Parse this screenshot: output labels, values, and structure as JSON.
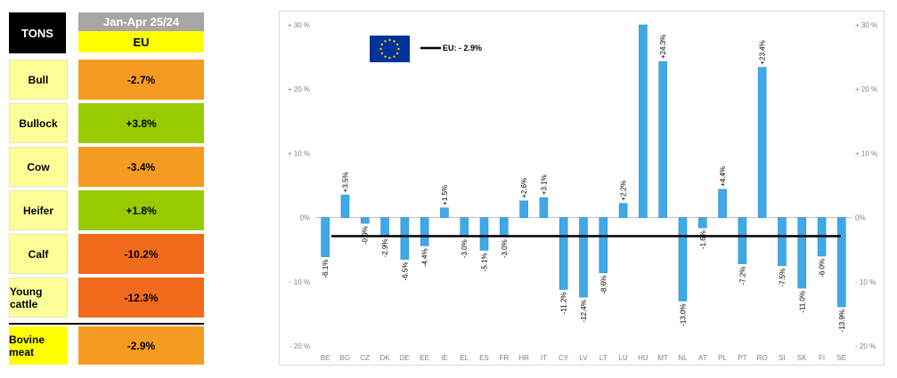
{
  "table": {
    "corner_label": "TONS",
    "period": "Jan-Apr 25/24",
    "region": "EU",
    "rows": [
      {
        "label": "Bull",
        "value": "-2.7%",
        "tone": "down"
      },
      {
        "label": "Bullock",
        "value": "+3.8%",
        "tone": "up"
      },
      {
        "label": "Cow",
        "value": "-3.4%",
        "tone": "down"
      },
      {
        "label": "Heifer",
        "value": "+1.8%",
        "tone": "up"
      },
      {
        "label": "Calf",
        "value": "-10.2%",
        "tone": "deep"
      },
      {
        "label": "Young cattle",
        "value": "-12.3%",
        "tone": "deep"
      }
    ],
    "total": {
      "label": "Bovine meat",
      "value": "-2.9%",
      "tone": "down"
    }
  },
  "chart_data": {
    "type": "bar",
    "categories": [
      "BE",
      "BG",
      "CZ",
      "DK",
      "DE",
      "EE",
      "IE",
      "EL",
      "ES",
      "FR",
      "HR",
      "IT",
      "CY",
      "LV",
      "LT",
      "LU",
      "HU",
      "MT",
      "NL",
      "AT",
      "PL",
      "PT",
      "RO",
      "SI",
      "SK",
      "FI",
      "SE"
    ],
    "values": [
      -6.1,
      3.5,
      -0.9,
      -2.9,
      -6.5,
      -4.4,
      1.5,
      -3.0,
      -5.1,
      -3.0,
      2.6,
      3.1,
      -11.2,
      -12.4,
      -8.6,
      2.2,
      30,
      24.3,
      -13.0,
      -1.6,
      4.4,
      -7.2,
      23.4,
      -7.5,
      -11.0,
      -6.0,
      -13.9
    ],
    "data_labels": [
      "-6.1%",
      "+3.5%",
      "-0.9%",
      "-2.9%",
      "-6.5%",
      "-4.4%",
      "+1.5%",
      "-3.0%",
      "-5.1%",
      "-3.0%",
      "+2.6%",
      "+3.1%",
      "-11.2%",
      "-12.4%",
      "-8.6%",
      "+2.2%",
      "",
      "+24.3%",
      "-13.0%",
      "-1.6%",
      "+4.4%",
      "-7.2%",
      "+23.4%",
      "-7.5%",
      "-11.0%",
      "-6.0%",
      "-13.9%"
    ],
    "ylim": [
      -20,
      30
    ],
    "yticks": [
      30,
      20,
      10,
      0,
      -10,
      -20
    ],
    "ytick_labels": [
      "+ 30 %",
      "+ 20 %",
      "+ 10 %",
      "0%",
      "- 10 %",
      "- 20 %"
    ],
    "reference_line": {
      "label": "EU: - 2.9%",
      "value": -2.9
    },
    "bar_color": "#3fa9e8",
    "line_color": "#000000",
    "grid": false,
    "legend": "top-left",
    "flag_icon": "eu-flag-icon"
  }
}
